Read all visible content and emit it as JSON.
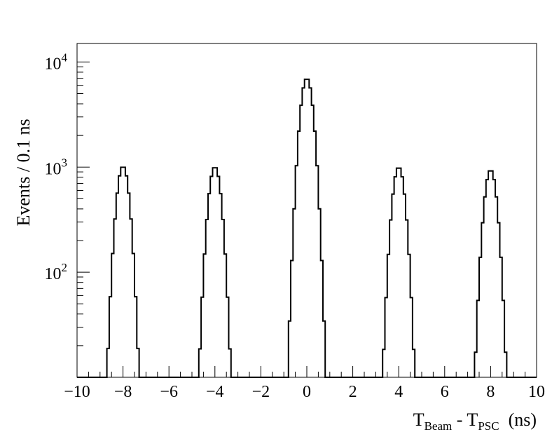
{
  "chart_data": {
    "type": "histogram",
    "title": "",
    "xlabel": {
      "main": "T",
      "sub1": "Beam",
      "mid": " - T",
      "sub2": "PSC",
      "unit": "  (ns)"
    },
    "ylabel": "Events / 0.1 ns",
    "xlim": [
      -10,
      10
    ],
    "ylim": [
      10,
      15000
    ],
    "yscale": "log",
    "grid": false,
    "bin_width": 0.1,
    "x_ticks": [
      -10,
      -8,
      -6,
      -4,
      -2,
      0,
      2,
      4,
      6,
      8,
      10
    ],
    "x_tick_labels": [
      "−10",
      "−8",
      "−6",
      "−4",
      "−2",
      "0",
      "2",
      "4",
      "6",
      "8",
      "10"
    ],
    "y_ticks": [
      {
        "value": 100,
        "base": "10",
        "exp": "2"
      },
      {
        "value": 1000,
        "base": "10",
        "exp": "3"
      },
      {
        "value": 10000,
        "base": "10",
        "exp": "4"
      }
    ],
    "series": [
      {
        "peaks": [
          {
            "center": -8.0,
            "height": 1020
          },
          {
            "center": -4.0,
            "height": 1010
          },
          {
            "center": 0.0,
            "height": 7000
          },
          {
            "center": 4.0,
            "height": 1000
          },
          {
            "center": 8.0,
            "height": 940
          }
        ],
        "peak_sigma_ns": 0.23
      }
    ]
  }
}
